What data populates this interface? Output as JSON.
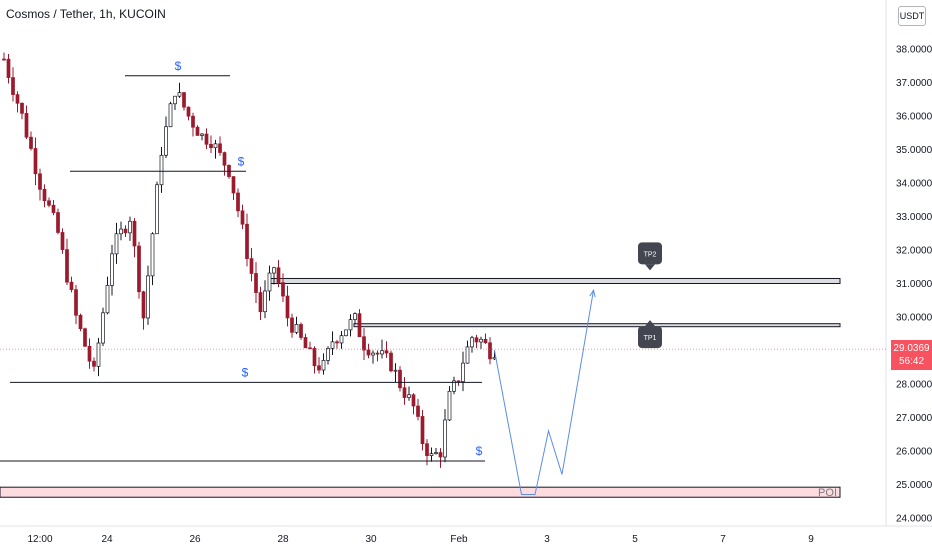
{
  "header": {
    "title": "Cosmos / Tether, 1h, KUCOIN",
    "currency": "USDT"
  },
  "price_tag": {
    "price": "29.0369",
    "countdown": "56:42"
  },
  "chart_data": {
    "type": "candlestick",
    "title": "Cosmos / Tether, 1h, KUCOIN",
    "ylim": [
      23.6,
      38.6
    ],
    "y_ticks": [
      "24.0000",
      "25.0000",
      "26.0000",
      "27.0000",
      "28.0000",
      "29.0000",
      "30.0000",
      "31.0000",
      "32.0000",
      "33.0000",
      "34.0000",
      "35.0000",
      "36.0000",
      "37.0000",
      "38.0000"
    ],
    "x_ticks": [
      "12:00",
      "24",
      "26",
      "28",
      "30",
      "Feb",
      "3",
      "5",
      "7",
      "9"
    ],
    "last_price": 29.0369,
    "price_path": [
      [
        0,
        37.7
      ],
      [
        4,
        36.0
      ],
      [
        8,
        34.0
      ],
      [
        12,
        32.5
      ],
      [
        16,
        30.0
      ],
      [
        20,
        28.3
      ],
      [
        24,
        32.0
      ],
      [
        28,
        33.0
      ],
      [
        31,
        30.0
      ],
      [
        35,
        35.0
      ],
      [
        38,
        36.8
      ],
      [
        41,
        36.0
      ],
      [
        44,
        35.4
      ],
      [
        46,
        35.3
      ],
      [
        48,
        34.8
      ],
      [
        50,
        34.4
      ],
      [
        52,
        33.2
      ],
      [
        55,
        31.3
      ],
      [
        57,
        30.2
      ],
      [
        60,
        31.5
      ],
      [
        63,
        30.0
      ],
      [
        66,
        29.3
      ],
      [
        69,
        28.6
      ],
      [
        71,
        28.5
      ],
      [
        73,
        29.3
      ],
      [
        76,
        29.7
      ],
      [
        78,
        29.9
      ],
      [
        80,
        29.2
      ],
      [
        83,
        28.9
      ],
      [
        86,
        28.6
      ],
      [
        88,
        28.0
      ],
      [
        91,
        27.3
      ],
      [
        93,
        26.3
      ],
      [
        95,
        25.8
      ],
      [
        97,
        26.0
      ],
      [
        99,
        27.6
      ],
      [
        101,
        28.2
      ],
      [
        102,
        28.7
      ],
      [
        104,
        29.4
      ],
      [
        106,
        29.3
      ],
      [
        108,
        29.0
      ],
      [
        109,
        29.04
      ]
    ],
    "horizontal_levels": [
      {
        "price": 37.2,
        "label": "$"
      },
      {
        "price": 34.35,
        "label": "$"
      },
      {
        "price": 28.05,
        "label": "$"
      },
      {
        "price": 25.7,
        "label": "$"
      }
    ],
    "zones": [
      {
        "top": 31.15,
        "bottom": 31.0,
        "label": ""
      },
      {
        "top": 29.8,
        "bottom": 29.72,
        "label": ""
      },
      {
        "top": 24.92,
        "bottom": 24.62,
        "label": "POI"
      }
    ],
    "targets": [
      {
        "label": "TP1",
        "price": 29.8
      },
      {
        "label": "TP2",
        "price": 31.1
      }
    ],
    "projection_path": [
      [
        109,
        29.0
      ],
      [
        115,
        24.7
      ],
      [
        118,
        24.7
      ],
      [
        121,
        26.6
      ],
      [
        124,
        25.3
      ],
      [
        131,
        30.8
      ]
    ]
  }
}
